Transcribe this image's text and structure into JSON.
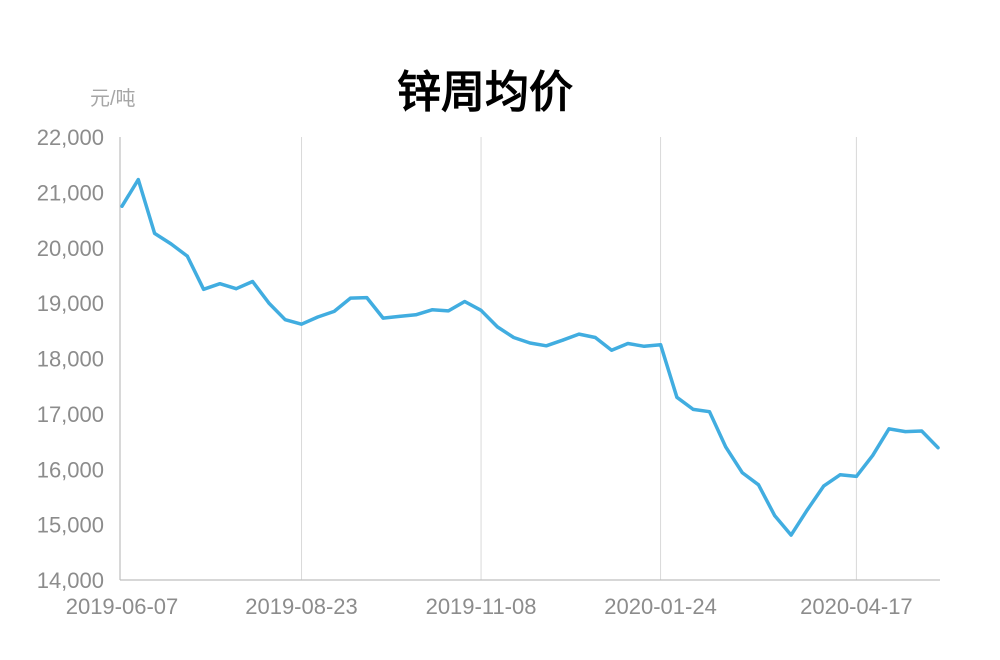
{
  "chart_data": {
    "type": "line",
    "title": "锌周均价",
    "ylabel": "元/吨",
    "xlabel": "",
    "ylim": [
      14000,
      22000
    ],
    "yticks": [
      "22,000",
      "21,000",
      "20,000",
      "19,000",
      "18,000",
      "17,000",
      "16,000",
      "15,000",
      "14,000"
    ],
    "xticks": [
      "2019-06-07",
      "2019-08-23",
      "2019-11-08",
      "2020-01-24",
      "2020-04-17"
    ],
    "grid": "vertical",
    "line_color": "#41ade0",
    "x": [
      "2019-06-07",
      "2019-06-14",
      "2019-06-21",
      "2019-06-28",
      "2019-07-05",
      "2019-07-12",
      "2019-07-19",
      "2019-07-26",
      "2019-08-02",
      "2019-08-09",
      "2019-08-16",
      "2019-08-23",
      "2019-08-30",
      "2019-09-06",
      "2019-09-13",
      "2019-09-20",
      "2019-09-27",
      "2019-10-04",
      "2019-10-11",
      "2019-10-18",
      "2019-10-25",
      "2019-11-01",
      "2019-11-08",
      "2019-11-15",
      "2019-11-22",
      "2019-11-29",
      "2019-12-06",
      "2019-12-13",
      "2019-12-20",
      "2019-12-27",
      "2020-01-03",
      "2020-01-10",
      "2020-01-17",
      "2020-01-24",
      "2020-01-31",
      "2020-02-07",
      "2020-02-14",
      "2020-02-21",
      "2020-02-28",
      "2020-03-06",
      "2020-03-13",
      "2020-03-20",
      "2020-03-27",
      "2020-04-03",
      "2020-04-10",
      "2020-04-17",
      "2020-04-24",
      "2020-05-01",
      "2020-05-08",
      "2020-05-15",
      "2020-05-22"
    ],
    "values": [
      20750,
      21230,
      20260,
      20070,
      19850,
      19250,
      19350,
      19260,
      19390,
      19000,
      18700,
      18620,
      18750,
      18850,
      19090,
      19100,
      18730,
      18760,
      18790,
      18880,
      18860,
      19030,
      18870,
      18570,
      18380,
      18280,
      18230,
      18330,
      18440,
      18380,
      18150,
      18270,
      18220,
      18250,
      17300,
      17080,
      17040,
      16400,
      15940,
      15720,
      15160,
      14810,
      15270,
      15700,
      15900,
      15870,
      16250,
      16730,
      16680,
      16690,
      16390
    ]
  }
}
